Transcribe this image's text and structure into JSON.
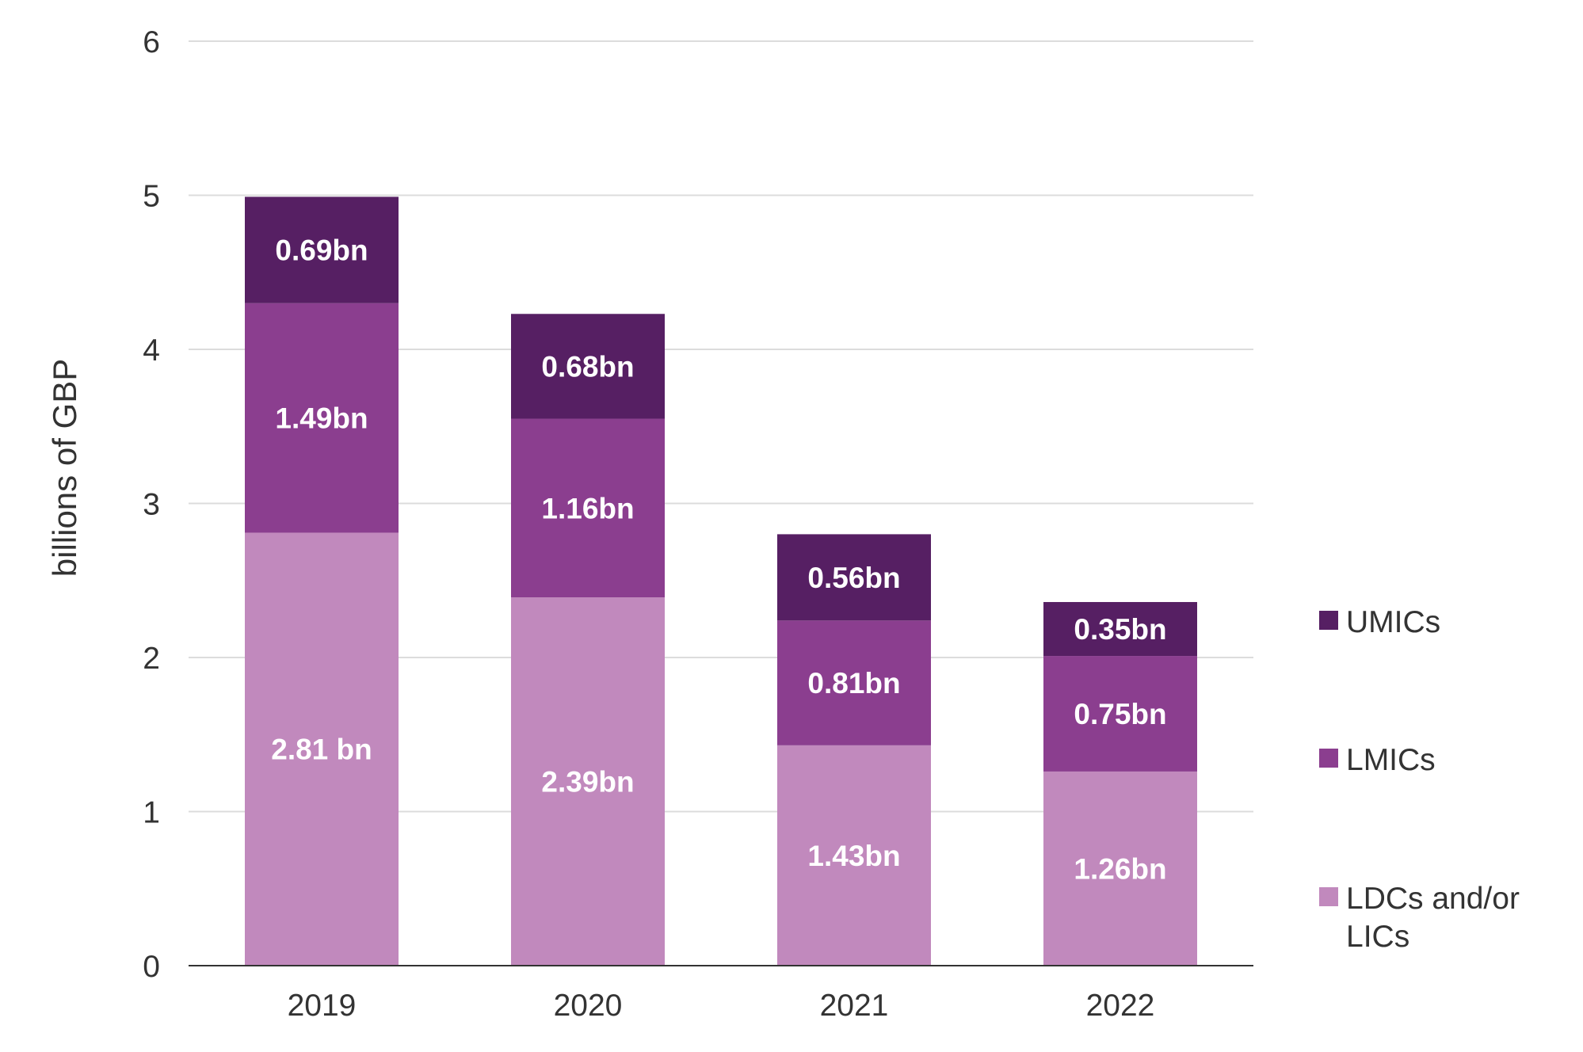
{
  "chart_data": {
    "type": "bar",
    "stacked": true,
    "title": "",
    "xlabel": "",
    "ylabel": "billions of GBP",
    "ylim": [
      0,
      6
    ],
    "yticks": [
      0,
      1,
      2,
      3,
      4,
      5,
      6
    ],
    "grid": true,
    "legend_position": "right",
    "categories": [
      "2019",
      "2020",
      "2021",
      "2022"
    ],
    "series": [
      {
        "name": "LDCs and/or LICs",
        "color": "#c189bd",
        "values": [
          2.81,
          2.39,
          1.43,
          1.26
        ],
        "labels": [
          "2.81 bn",
          "2.39bn",
          "1.43bn",
          "1.26bn"
        ]
      },
      {
        "name": "LMICs",
        "color": "#8b3e8f",
        "values": [
          1.49,
          1.16,
          0.81,
          0.75
        ],
        "labels": [
          "1.49bn",
          "1.16bn",
          "0.81bn",
          "0.75bn"
        ]
      },
      {
        "name": "UMICs",
        "color": "#561f63",
        "values": [
          0.69,
          0.68,
          0.56,
          0.35
        ],
        "labels": [
          "0.69bn",
          "0.68bn",
          "0.56bn",
          "0.35bn"
        ]
      }
    ]
  }
}
